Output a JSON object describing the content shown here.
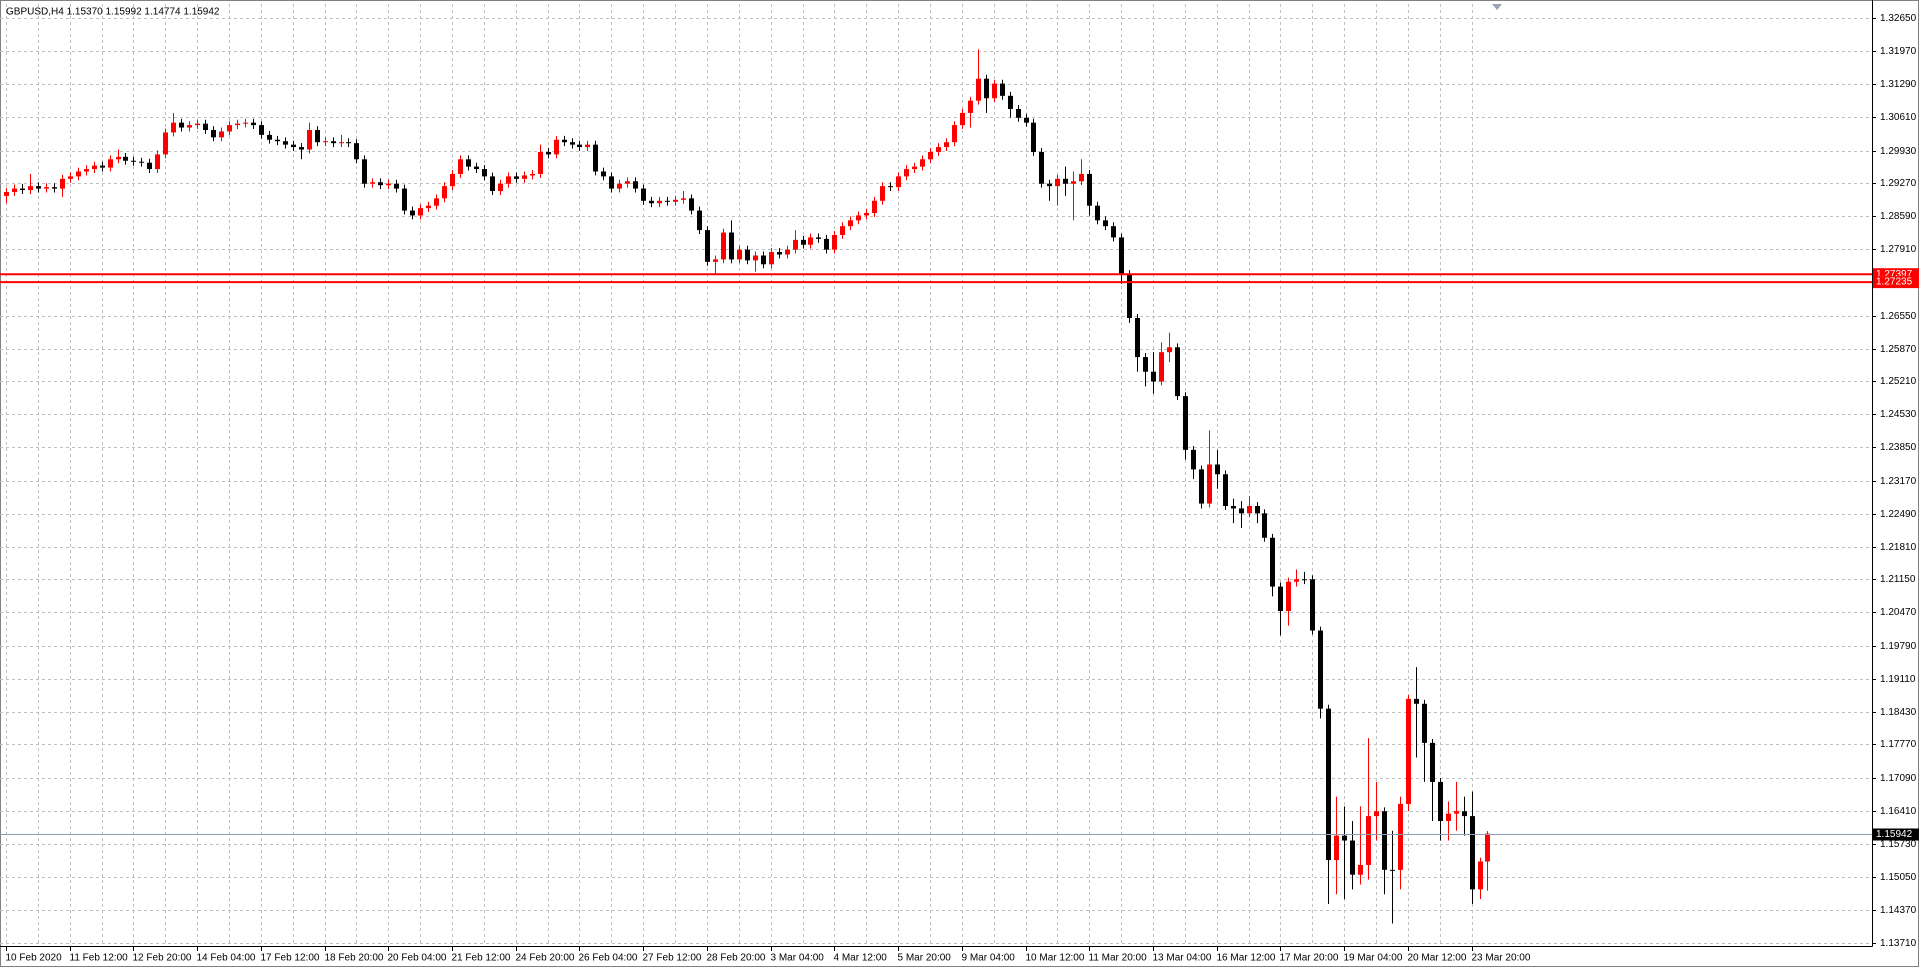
{
  "chart_data": {
    "type": "candlestick",
    "title": "GBPUSD,H4  1.15370 1.15992 1.14774 1.15942",
    "up_color": "#ff0000",
    "down_color": "#000000",
    "grid": true,
    "grid_color": "#c0c0c0",
    "levels": [
      1.27397,
      1.27235
    ],
    "level_color": "#ff0000",
    "bid_color": "#8c9bb0",
    "ylim": [
      1.1364,
      1.3293
    ],
    "yticks": [
      {
        "value": 1.3265,
        "label": "1.32650"
      },
      {
        "value": 1.3197,
        "label": "1.31970"
      },
      {
        "value": 1.3129,
        "label": "1.31290"
      },
      {
        "value": 1.3061,
        "label": "1.30610"
      },
      {
        "value": 1.2993,
        "label": "1.29930"
      },
      {
        "value": 1.2927,
        "label": "1.29270"
      },
      {
        "value": 1.2859,
        "label": "1.28590"
      },
      {
        "value": 1.2791,
        "label": "1.27910"
      },
      {
        "value": 1.2655,
        "label": "1.26550"
      },
      {
        "value": 1.2587,
        "label": "1.25870"
      },
      {
        "value": 1.2521,
        "label": "1.25210"
      },
      {
        "value": 1.2453,
        "label": "1.24530"
      },
      {
        "value": 1.2385,
        "label": "1.23850"
      },
      {
        "value": 1.2317,
        "label": "1.23170"
      },
      {
        "value": 1.2249,
        "label": "1.22490"
      },
      {
        "value": 1.2181,
        "label": "1.21810"
      },
      {
        "value": 1.2115,
        "label": "1.21150"
      },
      {
        "value": 1.2047,
        "label": "1.20470"
      },
      {
        "value": 1.1979,
        "label": "1.19790"
      },
      {
        "value": 1.1911,
        "label": "1.19110"
      },
      {
        "value": 1.1843,
        "label": "1.18430"
      },
      {
        "value": 1.1777,
        "label": "1.17770"
      },
      {
        "value": 1.1709,
        "label": "1.17090"
      },
      {
        "value": 1.1641,
        "label": "1.16410"
      },
      {
        "value": 1.1573,
        "label": "1.15730"
      },
      {
        "value": 1.1505,
        "label": "1.15050"
      },
      {
        "value": 1.1437,
        "label": "1.14370"
      },
      {
        "value": 1.1371,
        "label": "1.13710"
      }
    ],
    "categories": [
      "10 Feb 2020",
      null,
      null,
      null,
      null,
      null,
      null,
      null,
      "11 Feb 12:00",
      null,
      null,
      null,
      null,
      null,
      null,
      null,
      "12 Feb 20:00",
      null,
      null,
      null,
      null,
      null,
      null,
      null,
      "14 Feb 04:00",
      null,
      null,
      null,
      null,
      null,
      null,
      null,
      "17 Feb 12:00",
      null,
      null,
      null,
      null,
      null,
      null,
      null,
      "18 Feb 20:00",
      null,
      null,
      null,
      null,
      null,
      null,
      null,
      "20 Feb 04:00",
      null,
      null,
      null,
      null,
      null,
      null,
      null,
      "21 Feb 12:00",
      null,
      null,
      null,
      null,
      null,
      null,
      null,
      "24 Feb 20:00",
      null,
      null,
      null,
      null,
      null,
      null,
      null,
      "26 Feb 04:00",
      null,
      null,
      null,
      null,
      null,
      null,
      null,
      "27 Feb 12:00",
      null,
      null,
      null,
      null,
      null,
      null,
      null,
      "28 Feb 20:00",
      null,
      null,
      null,
      null,
      null,
      null,
      null,
      "3 Mar 04:00",
      null,
      null,
      null,
      null,
      null,
      null,
      null,
      "4 Mar 12:00",
      null,
      null,
      null,
      null,
      null,
      null,
      null,
      "5 Mar 20:00",
      null,
      null,
      null,
      null,
      null,
      null,
      null,
      "9 Mar 04:00",
      null,
      null,
      null,
      null,
      null,
      null,
      null,
      "10 Mar 12:00",
      null,
      null,
      null,
      null,
      null,
      null,
      null,
      "11 Mar 20:00",
      null,
      null,
      null,
      null,
      null,
      null,
      null,
      "13 Mar 04:00",
      null,
      null,
      null,
      null,
      null,
      null,
      null,
      "16 Mar 12:00",
      null,
      null,
      null,
      null,
      null,
      null,
      null,
      "17 Mar 20:00",
      null,
      null,
      null,
      null,
      null,
      null,
      null,
      "19 Mar 04:00",
      null,
      null,
      null,
      null,
      null,
      null,
      null,
      "20 Mar 12:00",
      null,
      null,
      null,
      null,
      null,
      null,
      null,
      "23 Mar 20:00",
      null,
      null
    ],
    "open": [
      1.29,
      1.2908,
      1.2915,
      1.2912,
      1.292,
      1.2915,
      1.2918,
      1.2915,
      1.2935,
      1.294,
      1.295,
      1.2955,
      1.2962,
      1.2958,
      1.2975,
      1.298,
      1.2972,
      1.297,
      1.2968,
      1.2955,
      1.2985,
      1.303,
      1.305,
      1.304,
      1.3045,
      1.3048,
      1.3035,
      1.302,
      1.3032,
      1.3045,
      1.3048,
      1.305,
      1.3045,
      1.3025,
      1.3015,
      1.3012,
      1.3005,
      1.3,
      1.2995,
      1.3035,
      1.301,
      1.3012,
      1.3008,
      1.301,
      1.3008,
      1.2975,
      1.2925,
      1.2928,
      1.2922,
      1.2925,
      1.2915,
      1.287,
      1.286,
      1.2875,
      1.288,
      1.2895,
      1.292,
      1.2945,
      1.2975,
      1.296,
      1.2955,
      1.294,
      1.291,
      1.2925,
      1.294,
      1.2935,
      1.2942,
      1.2945,
      1.299,
      1.2985,
      1.3015,
      1.301,
      1.3005,
      1.3,
      1.3005,
      1.295,
      1.294,
      1.2915,
      1.2925,
      1.293,
      1.2915,
      1.289,
      1.2885,
      1.289,
      1.2888,
      1.2892,
      1.2895,
      1.287,
      1.283,
      1.2765,
      1.277,
      1.2825,
      1.277,
      1.279,
      1.2768,
      1.2778,
      1.276,
      1.2785,
      1.278,
      1.279,
      1.281,
      1.28,
      1.2815,
      1.2812,
      1.279,
      1.282,
      1.2838,
      1.285,
      1.286,
      1.2865,
      1.289,
      1.292,
      1.2918,
      1.294,
      1.2955,
      1.296,
      1.2975,
      1.299,
      1.3,
      1.301,
      1.3045,
      1.307,
      1.3095,
      1.314,
      1.31,
      1.313,
      1.3105,
      1.3078,
      1.306,
      1.305,
      1.299,
      1.2925,
      1.292,
      1.2935,
      1.2925,
      1.293,
      1.2945,
      1.288,
      1.285,
      1.2838,
      1.2815,
      1.274,
      1.265,
      1.257,
      1.254,
      1.252,
      1.258,
      1.259,
      1.249,
      1.238,
      1.234,
      1.227,
      1.235,
      1.233,
      1.2265,
      1.226,
      1.225,
      1.2265,
      1.225,
      1.22,
      1.21,
      1.205,
      1.211,
      1.2115,
      1.2115,
      1.201,
      1.185,
      1.154,
      1.159,
      1.158,
      1.151,
      1.153,
      1.163,
      1.164,
      1.152,
      1.152,
      1.1655,
      1.187,
      1.186,
      1.178,
      1.17,
      1.162,
      1.1635,
      1.164,
      1.163,
      1.148,
      1.1537
    ],
    "high": [
      1.2916,
      1.2923,
      1.2925,
      1.2945,
      1.2928,
      1.2926,
      1.2926,
      1.2943,
      1.2948,
      1.2958,
      1.2963,
      1.297,
      1.297,
      1.2983,
      1.2995,
      1.2988,
      1.298,
      1.2978,
      1.2976,
      1.2993,
      1.3038,
      1.307,
      1.3058,
      1.3053,
      1.3056,
      1.3056,
      1.3043,
      1.304,
      1.3053,
      1.3056,
      1.3058,
      1.3058,
      1.3053,
      1.3033,
      1.3023,
      1.302,
      1.3013,
      1.3008,
      1.305,
      1.3043,
      1.302,
      1.302,
      1.3025,
      1.3018,
      1.3016,
      1.2983,
      1.2936,
      1.2936,
      1.2933,
      1.2933,
      1.2923,
      1.2878,
      1.2883,
      1.2888,
      1.2903,
      1.2928,
      1.2953,
      1.2983,
      1.2983,
      1.2968,
      1.2963,
      1.2948,
      1.2933,
      1.2948,
      1.2948,
      1.295,
      1.2953,
      1.3005,
      1.2998,
      1.3023,
      1.3023,
      1.3018,
      1.3013,
      1.3013,
      1.3013,
      1.2958,
      1.2948,
      1.2933,
      1.2938,
      1.2938,
      1.2923,
      1.2898,
      1.2898,
      1.2898,
      1.29,
      1.291,
      1.2903,
      1.2878,
      1.2838,
      1.2778,
      1.2833,
      1.285,
      1.2798,
      1.2798,
      1.2786,
      1.2786,
      1.2793,
      1.2793,
      1.2798,
      1.283,
      1.2818,
      1.2823,
      1.2823,
      1.282,
      1.2828,
      1.2846,
      1.2858,
      1.2868,
      1.2873,
      1.2898,
      1.2928,
      1.2928,
      1.2948,
      1.2963,
      1.2968,
      1.2983,
      1.2998,
      1.3008,
      1.3018,
      1.3053,
      1.3078,
      1.3103,
      1.32,
      1.3148,
      1.3138,
      1.3138,
      1.3113,
      1.3086,
      1.3068,
      1.3058,
      1.2998,
      1.2933,
      1.2943,
      1.296,
      1.295,
      1.2975,
      1.2953,
      1.2888,
      1.2858,
      1.2846,
      1.2823,
      1.2748,
      1.2658,
      1.2578,
      1.258,
      1.26,
      1.262,
      1.2598,
      1.2498,
      1.2388,
      1.2348,
      1.242,
      1.238,
      1.2338,
      1.228,
      1.2275,
      1.2285,
      1.2273,
      1.2258,
      1.2208,
      1.2108,
      1.2118,
      1.2135,
      1.213,
      1.2123,
      1.2018,
      1.1858,
      1.167,
      1.165,
      1.162,
      1.165,
      1.179,
      1.17,
      1.1648,
      1.16,
      1.167,
      1.1878,
      1.1935,
      1.1868,
      1.1788,
      1.1708,
      1.166,
      1.17,
      1.167,
      1.168,
      1.1545,
      1.15992
    ],
    "low": [
      1.2885,
      1.29,
      1.2904,
      1.2904,
      1.2907,
      1.2907,
      1.2907,
      1.2898,
      1.2927,
      1.2932,
      1.2942,
      1.2947,
      1.295,
      1.295,
      1.2967,
      1.2964,
      1.2962,
      1.296,
      1.2947,
      1.2947,
      1.2977,
      1.3022,
      1.3032,
      1.3032,
      1.3037,
      1.3027,
      1.3012,
      1.3012,
      1.3024,
      1.3037,
      1.304,
      1.3037,
      1.3017,
      1.3007,
      1.3004,
      1.2997,
      1.2992,
      1.2975,
      1.2987,
      1.3002,
      1.3002,
      1.3,
      1.3,
      1.3,
      1.2967,
      1.2917,
      1.2917,
      1.2914,
      1.2914,
      1.2907,
      1.2862,
      1.2852,
      1.2852,
      1.2867,
      1.2872,
      1.2887,
      1.2912,
      1.2937,
      1.2952,
      1.2947,
      1.2932,
      1.2902,
      1.2902,
      1.2917,
      1.2927,
      1.2927,
      1.2934,
      1.2937,
      1.2977,
      1.2977,
      1.3002,
      1.2997,
      1.2992,
      1.2992,
      1.2942,
      1.2932,
      1.2907,
      1.2907,
      1.2917,
      1.2907,
      1.2882,
      1.2877,
      1.2877,
      1.288,
      1.288,
      1.2884,
      1.2862,
      1.2822,
      1.2757,
      1.274,
      1.2762,
      1.2762,
      1.2762,
      1.276,
      1.2745,
      1.2752,
      1.2752,
      1.2772,
      1.2772,
      1.2782,
      1.2792,
      1.2792,
      1.2804,
      1.2782,
      1.2782,
      1.2812,
      1.283,
      1.2842,
      1.2852,
      1.2857,
      1.2882,
      1.291,
      1.291,
      1.2932,
      1.2947,
      1.2952,
      1.2967,
      1.2982,
      1.2992,
      1.3002,
      1.3037,
      1.304,
      1.3087,
      1.307,
      1.3092,
      1.3097,
      1.306,
      1.3052,
      1.3042,
      1.2982,
      1.2917,
      1.289,
      1.288,
      1.29,
      1.285,
      1.2922,
      1.286,
      1.2842,
      1.283,
      1.2807,
      1.272,
      1.264,
      1.254,
      1.251,
      1.2495,
      1.2512,
      1.256,
      1.2482,
      1.236,
      1.232,
      1.226,
      1.2262,
      1.23,
      1.2257,
      1.223,
      1.222,
      1.2242,
      1.223,
      1.2192,
      1.208,
      1.2,
      1.202,
      1.21,
      1.2105,
      1.2002,
      1.183,
      1.145,
      1.147,
      1.146,
      1.148,
      1.149,
      1.15,
      1.158,
      1.147,
      1.141,
      1.148,
      1.164,
      1.175,
      1.17,
      1.162,
      1.158,
      1.158,
      1.16,
      1.159,
      1.145,
      1.146,
      1.14774
    ],
    "close": [
      1.2908,
      1.2915,
      1.2912,
      1.292,
      1.2915,
      1.2918,
      1.2915,
      1.2935,
      1.294,
      1.295,
      1.2955,
      1.2962,
      1.2958,
      1.2975,
      1.298,
      1.2972,
      1.297,
      1.2968,
      1.2955,
      1.2985,
      1.303,
      1.305,
      1.304,
      1.3045,
      1.3048,
      1.3035,
      1.302,
      1.3032,
      1.3045,
      1.3048,
      1.305,
      1.3045,
      1.3025,
      1.3015,
      1.3012,
      1.3005,
      1.3,
      1.2995,
      1.3035,
      1.301,
      1.3012,
      1.3008,
      1.301,
      1.3008,
      1.2975,
      1.2925,
      1.2928,
      1.2922,
      1.2925,
      1.2915,
      1.287,
      1.286,
      1.2875,
      1.288,
      1.2895,
      1.292,
      1.2945,
      1.2975,
      1.296,
      1.2955,
      1.294,
      1.291,
      1.2925,
      1.294,
      1.2935,
      1.2942,
      1.2945,
      1.299,
      1.2985,
      1.3015,
      1.301,
      1.3005,
      1.3,
      1.3005,
      1.295,
      1.294,
      1.2915,
      1.2925,
      1.293,
      1.2915,
      1.289,
      1.2885,
      1.289,
      1.2888,
      1.2892,
      1.2895,
      1.287,
      1.283,
      1.2765,
      1.277,
      1.2825,
      1.277,
      1.279,
      1.2768,
      1.2778,
      1.276,
      1.2785,
      1.278,
      1.279,
      1.281,
      1.28,
      1.2815,
      1.2812,
      1.279,
      1.282,
      1.2838,
      1.285,
      1.286,
      1.2865,
      1.289,
      1.292,
      1.2918,
      1.294,
      1.2955,
      1.296,
      1.2975,
      1.299,
      1.3,
      1.301,
      1.3045,
      1.307,
      1.3095,
      1.314,
      1.31,
      1.313,
      1.3105,
      1.3078,
      1.306,
      1.305,
      1.299,
      1.2925,
      1.292,
      1.2935,
      1.2925,
      1.293,
      1.2945,
      1.288,
      1.285,
      1.2838,
      1.2815,
      1.274,
      1.265,
      1.257,
      1.254,
      1.252,
      1.258,
      1.259,
      1.249,
      1.238,
      1.234,
      1.227,
      1.235,
      1.233,
      1.2265,
      1.226,
      1.225,
      1.2265,
      1.225,
      1.22,
      1.21,
      1.205,
      1.211,
      1.2115,
      1.2115,
      1.201,
      1.185,
      1.154,
      1.159,
      1.158,
      1.151,
      1.153,
      1.163,
      1.164,
      1.152,
      1.152,
      1.1655,
      1.187,
      1.186,
      1.178,
      1.17,
      1.162,
      1.1635,
      1.164,
      1.163,
      1.148,
      1.1537,
      1.15942
    ]
  }
}
